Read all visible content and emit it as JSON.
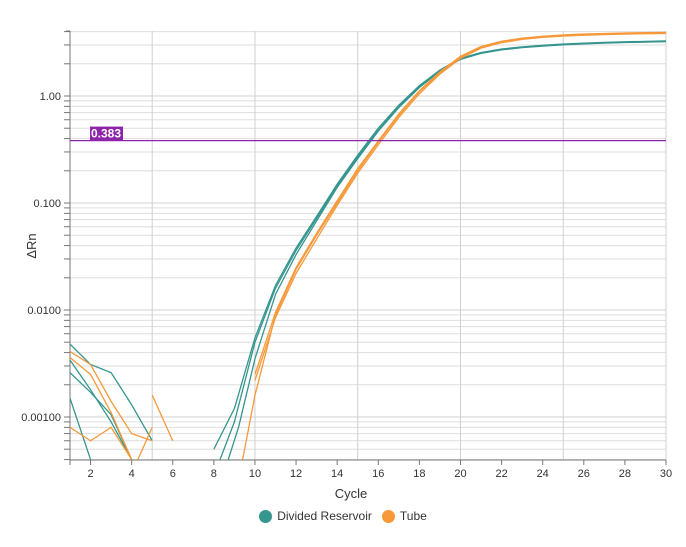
{
  "chart_data": {
    "type": "line",
    "title": "",
    "xlabel": "Cycle",
    "ylabel": "ΔRn",
    "yscale": "log",
    "xlim": [
      1,
      30
    ],
    "ylim": [
      0.00042,
      4.2
    ],
    "x_ticks": [
      2,
      4,
      6,
      8,
      10,
      12,
      14,
      16,
      18,
      20,
      22,
      24,
      26,
      28,
      30
    ],
    "y_ticks": [
      {
        "v": 1,
        "label": "1.00"
      },
      {
        "v": 0.1,
        "label": "0.100"
      },
      {
        "v": 0.01,
        "label": "0.0100"
      },
      {
        "v": 0.001,
        "label": "0.00100"
      }
    ],
    "vertical_grid": [
      5,
      10,
      15,
      20,
      25,
      30
    ],
    "grid": true,
    "legend_position": "bottom",
    "threshold": {
      "value": 0.383,
      "label": "0.383",
      "color": "#8e24aa"
    },
    "series": [
      {
        "name": "Divided Reservoir",
        "color": "#35958f",
        "curves": [
          [
            [
              1,
              0.0048
            ],
            [
              2,
              0.0031
            ],
            [
              3,
              0.0026
            ],
            [
              4,
              0.0013
            ],
            [
              5,
              0.0006
            ]
          ],
          [
            [
              1,
              0.0034
            ],
            [
              2,
              0.0018
            ],
            [
              3,
              0.0009
            ],
            [
              4,
              0.0004
            ]
          ],
          [
            [
              1,
              0.0026
            ],
            [
              2,
              0.0017
            ],
            [
              3,
              0.00105
            ],
            [
              4,
              0.0004
            ]
          ],
          [
            [
              1,
              0.0015
            ],
            [
              2,
              0.0004
            ]
          ],
          [
            [
              8,
              0.0005
            ],
            [
              9,
              0.0012
            ],
            [
              10,
              0.0055
            ],
            [
              11,
              0.017
            ],
            [
              12,
              0.038
            ],
            [
              13,
              0.075
            ],
            [
              14,
              0.15
            ],
            [
              15,
              0.28
            ],
            [
              16,
              0.5
            ],
            [
              17,
              0.82
            ],
            [
              18,
              1.25
            ],
            [
              19,
              1.75
            ],
            [
              20,
              2.25
            ],
            [
              21,
              2.55
            ],
            [
              22,
              2.75
            ],
            [
              23,
              2.88
            ],
            [
              24,
              2.98
            ],
            [
              25,
              3.06
            ],
            [
              26,
              3.12
            ],
            [
              27,
              3.17
            ],
            [
              28,
              3.21
            ],
            [
              29,
              3.24
            ],
            [
              30,
              3.27
            ]
          ],
          [
            [
              8.3,
              0.0004
            ],
            [
              9,
              0.0009
            ],
            [
              10,
              0.005
            ],
            [
              11,
              0.016
            ],
            [
              12,
              0.036
            ],
            [
              13,
              0.072
            ],
            [
              14,
              0.145
            ],
            [
              15,
              0.27
            ],
            [
              16,
              0.48
            ],
            [
              17,
              0.8
            ],
            [
              18,
              1.22
            ],
            [
              19,
              1.72
            ],
            [
              20,
              2.22
            ],
            [
              21,
              2.52
            ],
            [
              22,
              2.72
            ],
            [
              23,
              2.85
            ],
            [
              24,
              2.95
            ],
            [
              25,
              3.03
            ],
            [
              26,
              3.09
            ],
            [
              27,
              3.14
            ],
            [
              28,
              3.18
            ],
            [
              29,
              3.21
            ],
            [
              30,
              3.24
            ]
          ],
          [
            [
              8.7,
              0.0004
            ],
            [
              9.2,
              0.0008
            ],
            [
              10,
              0.0035
            ],
            [
              11,
              0.014
            ],
            [
              12,
              0.033
            ],
            [
              13,
              0.068
            ],
            [
              14,
              0.14
            ],
            [
              15,
              0.26
            ],
            [
              16,
              0.47
            ],
            [
              17,
              0.78
            ],
            [
              18,
              1.2
            ],
            [
              19,
              1.7
            ],
            [
              20,
              2.2
            ],
            [
              21,
              2.5
            ],
            [
              22,
              2.7
            ],
            [
              23,
              2.83
            ],
            [
              24,
              2.93
            ],
            [
              25,
              3.01
            ],
            [
              26,
              3.07
            ],
            [
              27,
              3.12
            ],
            [
              28,
              3.16
            ],
            [
              29,
              3.19
            ],
            [
              30,
              3.22
            ]
          ]
        ]
      },
      {
        "name": "Tube",
        "color": "#f7993a",
        "curves": [
          [
            [
              1,
              0.0041
            ],
            [
              2,
              0.0031
            ],
            [
              3,
              0.0014
            ],
            [
              4,
              0.0007
            ],
            [
              5,
              0.0006
            ]
          ],
          [
            [
              1,
              0.0036
            ],
            [
              2,
              0.0025
            ],
            [
              3,
              0.0011
            ],
            [
              4,
              0.0004
            ]
          ],
          [
            [
              1,
              0.0008
            ],
            [
              2,
              0.0006
            ],
            [
              3,
              0.0008
            ],
            [
              4,
              0.0004
            ]
          ],
          [
            [
              4.3,
              0.0004
            ],
            [
              5,
              0.0008
            ]
          ],
          [
            [
              5,
              0.0016
            ],
            [
              6,
              0.0006
            ]
          ],
          [
            [
              9.4,
              0.0004
            ],
            [
              10,
              0.0016
            ],
            [
              11,
              0.009
            ],
            [
              12,
              0.024
            ],
            [
              13,
              0.05
            ],
            [
              14,
              0.1
            ],
            [
              15,
              0.2
            ],
            [
              16,
              0.37
            ],
            [
              17,
              0.66
            ],
            [
              18,
              1.1
            ],
            [
              19,
              1.65
            ],
            [
              20,
              2.3
            ],
            [
              21,
              2.85
            ],
            [
              22,
              3.2
            ],
            [
              23,
              3.42
            ],
            [
              24,
              3.57
            ],
            [
              25,
              3.67
            ],
            [
              26,
              3.74
            ],
            [
              27,
              3.79
            ],
            [
              28,
              3.83
            ],
            [
              29,
              3.86
            ],
            [
              30,
              3.88
            ]
          ],
          [
            [
              10,
              0.0022
            ],
            [
              11,
              0.0085
            ],
            [
              12,
              0.022
            ],
            [
              13,
              0.046
            ],
            [
              14,
              0.095
            ],
            [
              15,
              0.19
            ],
            [
              16,
              0.35
            ],
            [
              17,
              0.63
            ],
            [
              18,
              1.05
            ],
            [
              19,
              1.6
            ],
            [
              20,
              2.25
            ],
            [
              21,
              2.8
            ],
            [
              22,
              3.15
            ],
            [
              23,
              3.38
            ],
            [
              24,
              3.53
            ],
            [
              25,
              3.63
            ],
            [
              26,
              3.7
            ],
            [
              27,
              3.75
            ],
            [
              28,
              3.79
            ],
            [
              29,
              3.82
            ],
            [
              30,
              3.84
            ]
          ],
          [
            [
              10,
              0.0025
            ],
            [
              11,
              0.0095
            ],
            [
              12,
              0.025
            ],
            [
              13,
              0.052
            ],
            [
              14,
              0.105
            ],
            [
              15,
              0.21
            ],
            [
              16,
              0.38
            ],
            [
              17,
              0.68
            ],
            [
              18,
              1.12
            ],
            [
              19,
              1.68
            ],
            [
              20,
              2.35
            ],
            [
              21,
              2.9
            ],
            [
              22,
              3.25
            ],
            [
              23,
              3.47
            ],
            [
              24,
              3.62
            ],
            [
              25,
              3.72
            ],
            [
              26,
              3.79
            ],
            [
              27,
              3.84
            ],
            [
              28,
              3.88
            ],
            [
              29,
              3.91
            ],
            [
              30,
              3.93
            ]
          ]
        ]
      }
    ]
  },
  "legend": {
    "items": [
      {
        "label": "Divided Reservoir",
        "color": "#35958f"
      },
      {
        "label": "Tube",
        "color": "#f7993a"
      }
    ]
  }
}
